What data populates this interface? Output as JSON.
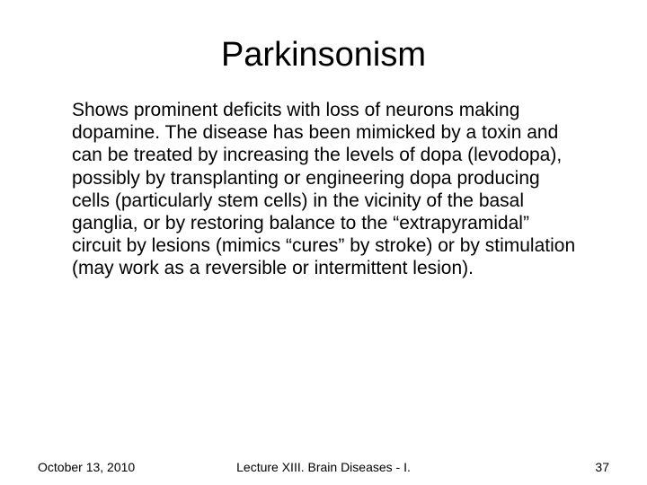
{
  "slide": {
    "title": "Parkinsonism",
    "body": "Shows prominent deficits with loss of neurons making dopamine. The disease has been mimicked by a toxin and can be treated by increasing the levels of dopa (levodopa), possibly by transplanting or engineering dopa producing cells (particularly stem cells) in the vicinity of the basal ganglia, or by restoring balance to the “extrapyramidal” circuit by lesions (mimics “cures” by stroke) or by stimulation (may work as a reversible or intermittent lesion).",
    "footer": {
      "date": "October 13, 2010",
      "lecture": "Lecture XIII. Brain Diseases - I.",
      "page": "37"
    }
  },
  "style": {
    "background_color": "#ffffff",
    "text_color": "#000000",
    "title_fontsize": 38,
    "body_fontsize": 21,
    "footer_fontsize": 14,
    "font_family": "Arial"
  }
}
